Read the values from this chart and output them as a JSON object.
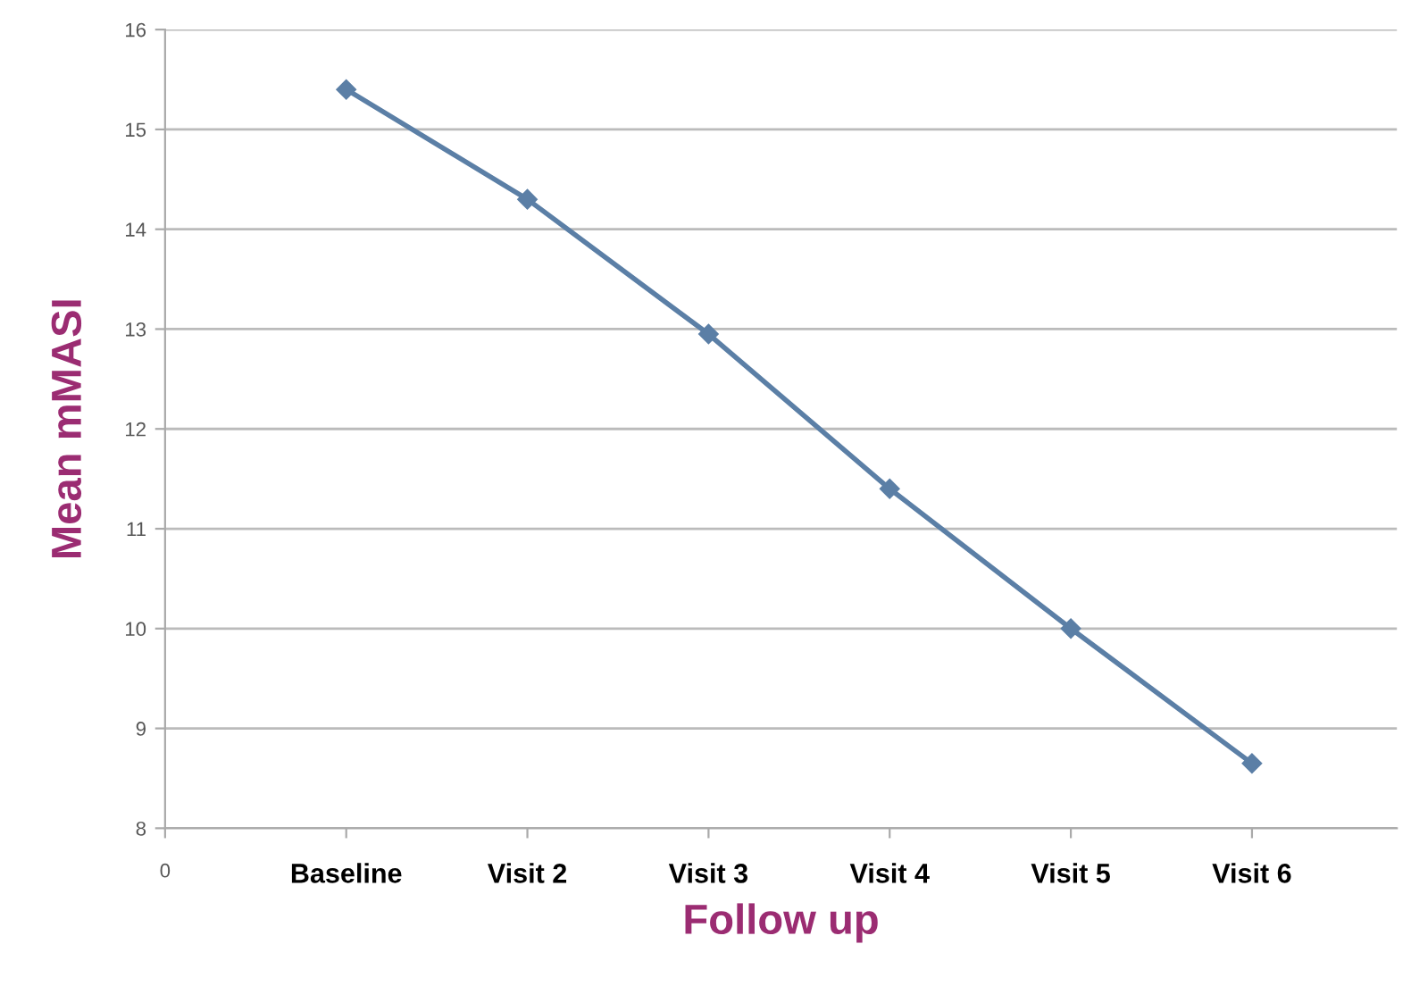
{
  "chart_data": {
    "type": "line",
    "xlabel": "Follow up",
    "ylabel": "Mean mMASI",
    "categories": [
      "0",
      "Baseline",
      "Visit 2",
      "Visit 3",
      "Visit 4",
      "Visit 5",
      "Visit 6"
    ],
    "series": [
      {
        "color": "#5b7fa6",
        "values": [
          null,
          15.4,
          14.3,
          12.95,
          11.4,
          10.0,
          8.65
        ]
      }
    ],
    "ylim": [
      8,
      16
    ],
    "yticks": [
      8,
      9,
      10,
      11,
      12,
      13,
      14,
      15,
      16
    ],
    "grid": "y",
    "marker": "diamond",
    "line_style": "solid",
    "legend": false
  }
}
